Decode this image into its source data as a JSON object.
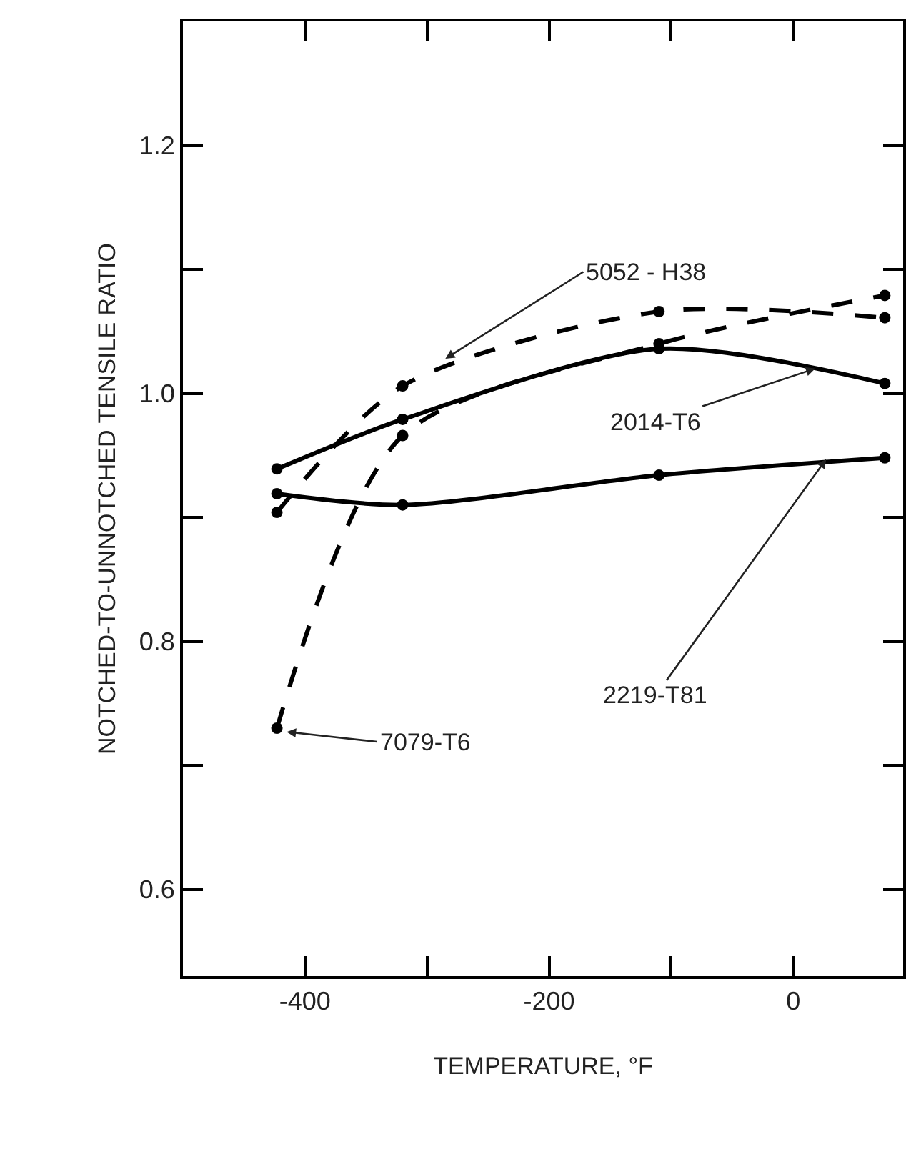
{
  "chart_data": {
    "type": "line",
    "xlabel": "TEMPERATURE, °F",
    "ylabel": "NOTCHED-TO-UNNOTCHED TENSILE RATIO",
    "x": [
      -423,
      -320,
      -110,
      75
    ],
    "series": [
      {
        "color": "#000000",
        "line_style": "dashed",
        "values": [
          0.904,
          1.006,
          1.066,
          1.061
        ]
      },
      {
        "color": "#000000",
        "line_style": "solid",
        "values": [
          0.939,
          0.979,
          1.036,
          1.008
        ]
      },
      {
        "color": "#000000",
        "line_style": "solid",
        "values": [
          0.919,
          0.91,
          0.934,
          0.948
        ]
      },
      {
        "color": "#000000",
        "line_style": "dashed",
        "values": [
          0.73,
          0.966,
          1.04,
          1.079
        ]
      }
    ],
    "annotations": [
      {
        "text": "5052 - H38",
        "x": -285,
        "y": 1.028
      },
      {
        "text": "2014-T6",
        "x": 18,
        "y": 1.02
      },
      {
        "text": "2219-T81",
        "x": 27,
        "y": 0.947
      },
      {
        "text": "7079-T6",
        "x": -415,
        "y": 0.727
      }
    ],
    "marker": "circle",
    "xlim": [
      -500,
      90
    ],
    "ylim": [
      0.53,
      1.3
    ],
    "xticks": [
      {
        "value": -400,
        "label": "-400"
      },
      {
        "value": -300,
        "label": null
      },
      {
        "value": -200,
        "label": "-200"
      },
      {
        "value": -100,
        "label": null
      },
      0
    ],
    "yticks": [
      {
        "value": 0.6,
        "label": "0.6"
      },
      {
        "value": 0.7,
        "label": null
      },
      {
        "value": 0.8,
        "label": "0.8"
      },
      {
        "value": 0.9,
        "label": null
      },
      {
        "value": 1.0,
        "label": "1.0"
      },
      {
        "value": 1.1,
        "label": null
      },
      {
        "value": 1.2,
        "label": "1.2"
      }
    ]
  }
}
